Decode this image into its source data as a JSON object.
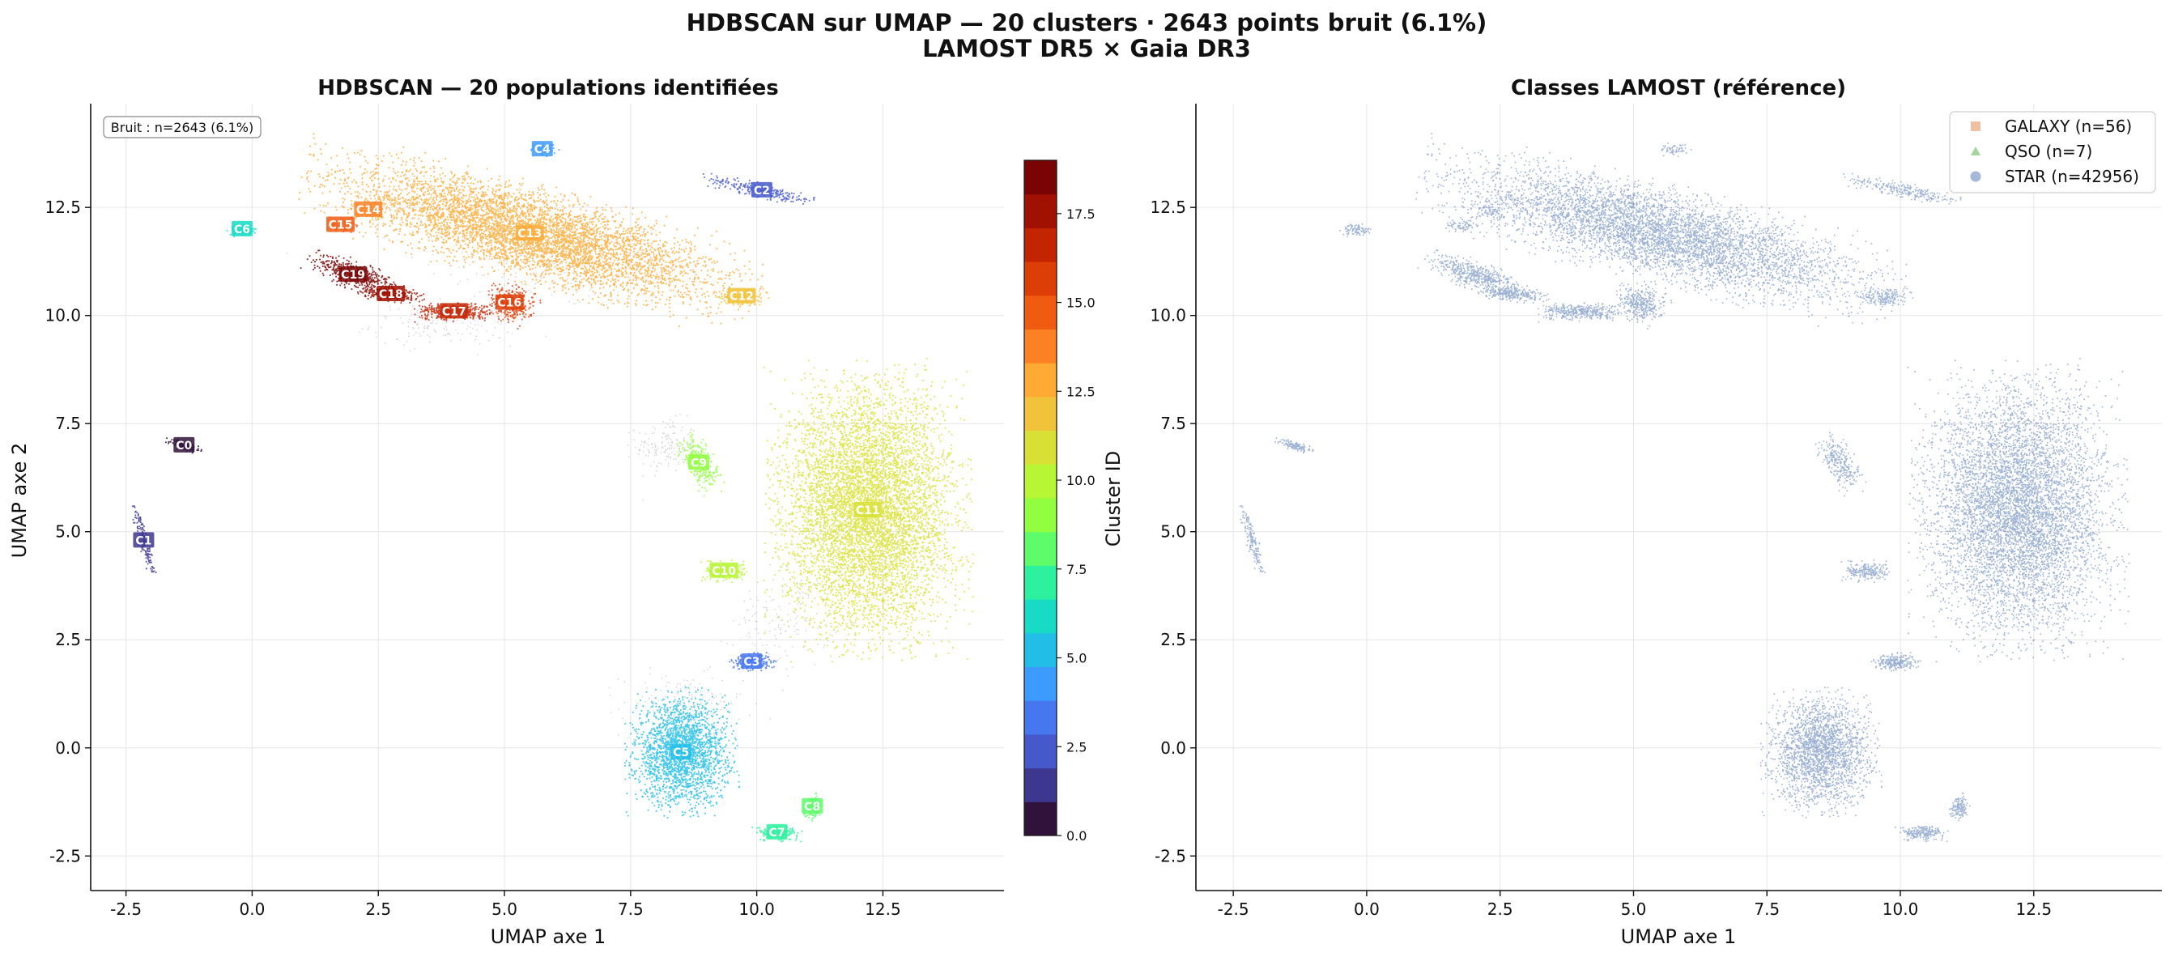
{
  "figure": {
    "title_line1": "HDBSCAN sur UMAP — 20 clusters · 2643 points bruit (6.1%)",
    "title_line2": "LAMOST DR5 × Gaia DR3"
  },
  "chart_data": [
    {
      "type": "scatter",
      "title": "HDBSCAN — 20 populations identifiées",
      "xlabel": "UMAP axe 1",
      "ylabel": "UMAP axe 2",
      "xlim": [
        -3.2,
        14.9
      ],
      "ylim": [
        -3.3,
        14.9
      ],
      "xticks": [
        "-2.5",
        "0.0",
        "2.5",
        "5.0",
        "7.5",
        "10.0",
        "12.5"
      ],
      "yticks": [
        "-2.5",
        "0.0",
        "2.5",
        "5.0",
        "7.5",
        "10.0",
        "12.5"
      ],
      "grid": true,
      "noise_box": "Bruit : n=2643 (6.1%)",
      "noise_color": "#cfcfcf",
      "colorbar": {
        "label": "Cluster ID",
        "range": [
          0,
          19
        ],
        "ticks": [
          "0.0",
          "2.5",
          "5.0",
          "7.5",
          "10.0",
          "12.5",
          "15.0",
          "17.5"
        ],
        "colors": [
          "#30123b",
          "#3e378f",
          "#4559cb",
          "#4777ef",
          "#3e9bfe",
          "#23bee8",
          "#18dbc6",
          "#2ef19f",
          "#5efc6a",
          "#91ff3f",
          "#b7f635",
          "#d9e035",
          "#f1c33b",
          "#feaa35",
          "#fc8124",
          "#f05b12",
          "#dd3e07",
          "#c32503",
          "#a01101",
          "#7a0403"
        ]
      },
      "clusters": [
        {
          "id": 0,
          "label": "C0",
          "color": "#30123b",
          "center": [
            -1.35,
            7.0
          ],
          "spread": [
            0.25,
            0.08
          ],
          "angle": -20,
          "n": 120
        },
        {
          "id": 1,
          "label": "C1",
          "color": "#3e378f",
          "center": [
            -2.15,
            4.8
          ],
          "spread": [
            0.08,
            0.65
          ],
          "angle": 12,
          "n": 160
        },
        {
          "id": 2,
          "label": "C2",
          "color": "#4559cb",
          "center": [
            10.1,
            12.9
          ],
          "spread": [
            0.85,
            0.12
          ],
          "angle": -15,
          "n": 260
        },
        {
          "id": 3,
          "label": "C3",
          "color": "#4777ef",
          "center": [
            9.9,
            2.0
          ],
          "spread": [
            0.3,
            0.14
          ],
          "angle": 0,
          "n": 260
        },
        {
          "id": 4,
          "label": "C4",
          "color": "#3e9bfe",
          "center": [
            5.75,
            13.85
          ],
          "spread": [
            0.2,
            0.1
          ],
          "angle": 0,
          "n": 60
        },
        {
          "id": 5,
          "label": "C5",
          "color": "#23bee8",
          "center": [
            8.5,
            -0.1
          ],
          "spread": [
            0.72,
            0.95
          ],
          "angle": 0,
          "n": 2300
        },
        {
          "id": 6,
          "label": "C6",
          "color": "#18dbc6",
          "center": [
            -0.2,
            12.0
          ],
          "spread": [
            0.22,
            0.1
          ],
          "angle": 0,
          "n": 90
        },
        {
          "id": 7,
          "label": "C7",
          "color": "#2ef19f",
          "center": [
            10.4,
            -1.95
          ],
          "spread": [
            0.32,
            0.13
          ],
          "angle": 0,
          "n": 220
        },
        {
          "id": 8,
          "label": "C8",
          "color": "#5efc6a",
          "center": [
            11.1,
            -1.35
          ],
          "spread": [
            0.13,
            0.2
          ],
          "angle": 0,
          "n": 140
        },
        {
          "id": 9,
          "label": "C9",
          "color": "#91ff3f",
          "center": [
            8.85,
            6.6
          ],
          "spread": [
            0.22,
            0.5
          ],
          "angle": 25,
          "n": 260
        },
        {
          "id": 10,
          "label": "C10",
          "color": "#b7f635",
          "center": [
            9.35,
            4.1
          ],
          "spread": [
            0.3,
            0.17
          ],
          "angle": 0,
          "n": 220
        },
        {
          "id": 11,
          "label": "C11",
          "color": "#d9e035",
          "center": [
            12.2,
            5.5
          ],
          "spread": [
            1.3,
            2.2
          ],
          "angle": 0,
          "n": 6500
        },
        {
          "id": 12,
          "label": "C12",
          "color": "#f1c33b",
          "center": [
            9.7,
            10.45
          ],
          "spread": [
            0.35,
            0.15
          ],
          "angle": 0,
          "n": 180
        },
        {
          "id": 13,
          "label": "C13",
          "color": "#feaa35",
          "center": [
            5.5,
            11.9
          ],
          "spread": [
            3.0,
            0.75
          ],
          "angle": -17,
          "n": 5200
        },
        {
          "id": 14,
          "label": "C14",
          "color": "#fc8124",
          "center": [
            2.3,
            12.45
          ],
          "spread": [
            0.25,
            0.13
          ],
          "angle": 0,
          "n": 70
        },
        {
          "id": 15,
          "label": "C15",
          "color": "#f05b12",
          "center": [
            1.75,
            12.1
          ],
          "spread": [
            0.25,
            0.1
          ],
          "angle": 0,
          "n": 70
        },
        {
          "id": 16,
          "label": "C16",
          "color": "#dd3e07",
          "center": [
            5.1,
            10.3
          ],
          "spread": [
            0.35,
            0.3
          ],
          "angle": -30,
          "n": 350
        },
        {
          "id": 17,
          "label": "C17",
          "color": "#c32503",
          "center": [
            4.0,
            10.1
          ],
          "spread": [
            0.6,
            0.15
          ],
          "angle": 0,
          "n": 380
        },
        {
          "id": 18,
          "label": "C18",
          "color": "#a01101",
          "center": [
            2.75,
            10.5
          ],
          "spread": [
            0.45,
            0.12
          ],
          "angle": -5,
          "n": 260
        },
        {
          "id": 19,
          "label": "C19",
          "color": "#7a0403",
          "center": [
            2.0,
            10.95
          ],
          "spread": [
            0.65,
            0.22
          ],
          "angle": -25,
          "n": 520
        }
      ]
    },
    {
      "type": "scatter",
      "title": "Classes LAMOST (référence)",
      "xlabel": "UMAP axe 1",
      "ylabel": "",
      "xlim": [
        -3.2,
        14.9
      ],
      "ylim": [
        -3.3,
        14.9
      ],
      "xticks": [
        "-2.5",
        "0.0",
        "2.5",
        "5.0",
        "7.5",
        "10.0",
        "12.5"
      ],
      "yticks": [
        "-2.5",
        "0.0",
        "2.5",
        "5.0",
        "7.5",
        "10.0",
        "12.5"
      ],
      "grid": true,
      "legend_position": "top-right",
      "series": [
        {
          "name": "GALAXY (n=56)",
          "marker": "square",
          "color": "#e8a27c",
          "n": 56
        },
        {
          "name": "QSO (n=7)",
          "marker": "triangle",
          "color": "#8fc987",
          "n": 7
        },
        {
          "name": "STAR (n=42956)",
          "marker": "circle",
          "color": "#4c72b0",
          "n": 42956
        }
      ]
    }
  ]
}
